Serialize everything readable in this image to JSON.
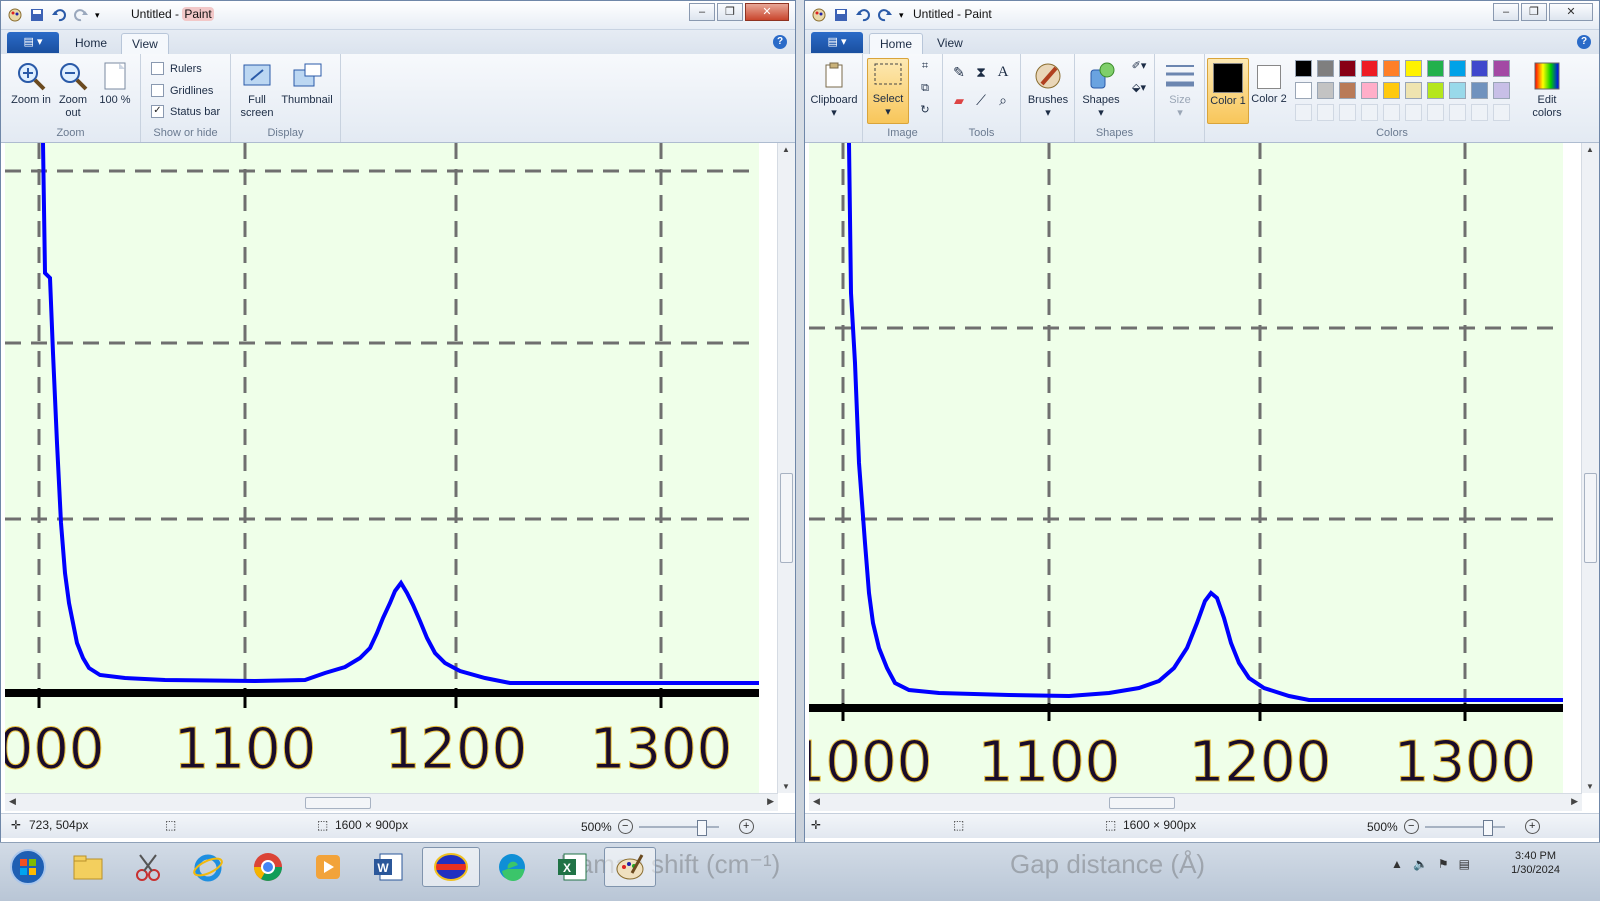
{
  "windows": [
    {
      "id": "left",
      "title_doc": "Untitled",
      "title_app": "Paint",
      "title_sep": " - ",
      "tabs": {
        "file": "▤ ▾",
        "home": "Home",
        "view": "View"
      },
      "active_tab": "view",
      "ribbon_view": {
        "zoom_in": "Zoom in",
        "zoom_out": "Zoom out",
        "hundred": "100 %",
        "rulers": "Rulers",
        "gridlines": "Gridlines",
        "statusbar": "Status bar",
        "fullscreen": "Full screen",
        "thumbnail": "Thumbnail",
        "group_zoom": "Zoom",
        "group_show": "Show or hide",
        "group_display": "Display",
        "checks": {
          "rulers": false,
          "gridlines": false,
          "statusbar": true
        }
      },
      "status": {
        "cursor": "723, 504px",
        "size": "1600 × 900px",
        "zoom": "500%"
      }
    },
    {
      "id": "right",
      "title_doc": "Untitled",
      "title_app": "Paint",
      "title_sep": " - ",
      "tabs": {
        "file": "▤ ▾",
        "home": "Home",
        "view": "View"
      },
      "active_tab": "home",
      "ribbon_home": {
        "clipboard": "Clipboard",
        "select": "Select",
        "brushes": "Brushes",
        "shapes": "Shapes",
        "size": "Size",
        "color1": "Color 1",
        "color2": "Color 2",
        "edit_colors": "Edit colors",
        "group_image": "Image",
        "group_tools": "Tools",
        "group_shapes": "Shapes",
        "group_colors": "Colors"
      },
      "status": {
        "cursor": "",
        "size": "1600 × 900px",
        "zoom": "500%"
      }
    }
  ],
  "palette": {
    "row1": [
      "#000000",
      "#7f7f7f",
      "#880015",
      "#ed1c24",
      "#ff7f27",
      "#fff200",
      "#22b14c",
      "#00a2e8",
      "#3f48cc",
      "#a349a4"
    ],
    "row2": [
      "#ffffff",
      "#c3c3c3",
      "#b97a57",
      "#ffaec9",
      "#ffc90e",
      "#efe4b0",
      "#b5e61d",
      "#99d9ea",
      "#7092be",
      "#c8bfe7"
    ]
  },
  "canvas_left": {
    "tick_labels": [
      "000",
      "1100",
      "1200",
      "1300"
    ]
  },
  "canvas_right": {
    "tick_labels": [
      "1000",
      "1100",
      "1200",
      "1300"
    ]
  },
  "taskbar": {
    "background_captions": [
      "Raman shift (cm⁻¹)",
      "Gap distance (Å)"
    ],
    "apps": [
      "start-orb",
      "file-explorer",
      "snipping-tool",
      "internet-explorer",
      "chrome",
      "media-player",
      "word",
      "vesta",
      "edge",
      "excel",
      "paint"
    ],
    "time": "3:40 PM",
    "date": "1/30/2024"
  },
  "colors": {
    "canvas_bg": "#efffe9",
    "curve": "#0000ff",
    "axis": "#000000",
    "grid": "#6f6f6f",
    "ribbon_active": "#fbd67a"
  }
}
